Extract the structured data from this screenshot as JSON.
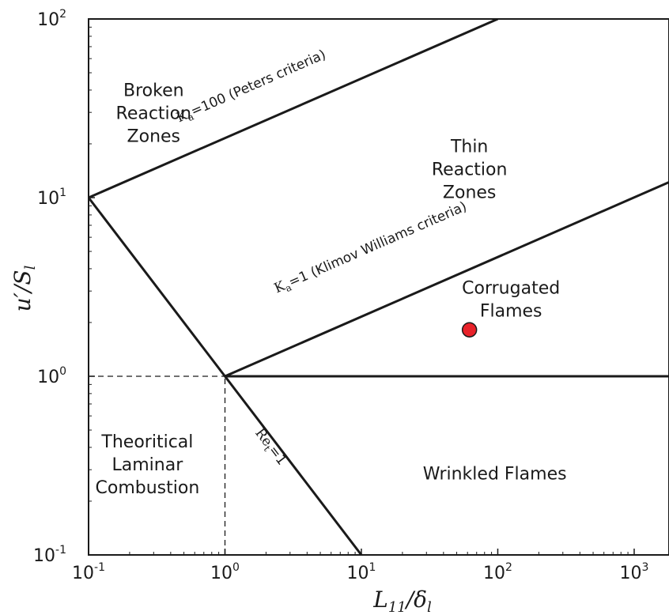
{
  "chart_data": {
    "type": "line",
    "title": "",
    "xlabel": {
      "base": "L",
      "sub": "11",
      "mid": "/δ",
      "sub2": "l"
    },
    "ylabel": {
      "base": "u′/S",
      "sub": "l"
    },
    "xscale": "log",
    "yscale": "log",
    "xlim": [
      0.1,
      1800
    ],
    "ylim": [
      0.1,
      100
    ],
    "grid": false,
    "x_ticks": [
      {
        "value": 0.1,
        "base": "10",
        "exp": "-1"
      },
      {
        "value": 1,
        "base": "10",
        "exp": "0"
      },
      {
        "value": 10,
        "base": "10",
        "exp": "1"
      },
      {
        "value": 100,
        "base": "10",
        "exp": "2"
      },
      {
        "value": 1000,
        "base": "10",
        "exp": "3"
      }
    ],
    "y_ticks": [
      {
        "value": 0.1,
        "base": "10",
        "exp": "-1"
      },
      {
        "value": 1,
        "base": "10",
        "exp": "0"
      },
      {
        "value": 10,
        "base": "10",
        "exp": "1"
      },
      {
        "value": 100,
        "base": "10",
        "exp": "2"
      }
    ],
    "lines": [
      {
        "id": "ka100",
        "x": [
          0.1,
          100
        ],
        "y": [
          10,
          100
        ],
        "style": "solid",
        "label": "K_a=100 (Peters criteria)",
        "label_main": "K",
        "label_sub": "a",
        "label_rest": "=100 (Peters criteria)",
        "label_at": [
          1.6,
          40
        ]
      },
      {
        "id": "ka1",
        "x": [
          1,
          1800
        ],
        "y": [
          1,
          12.2
        ],
        "style": "solid",
        "label": "K_a=1 (Klimov Williams criteria)",
        "label_main": "K",
        "label_sub": "a",
        "label_rest": "=1 (Klimov Williams criteria)",
        "label_at": [
          12,
          5.0
        ]
      },
      {
        "id": "re1",
        "x": [
          0.1,
          10
        ],
        "y": [
          10,
          0.1
        ],
        "style": "solid",
        "label": "Re_t=1",
        "label_main": "Re",
        "label_sub": "t",
        "label_rest": "=1",
        "label_at": [
          2.05,
          0.39
        ]
      },
      {
        "id": "hline",
        "x": [
          1,
          1800
        ],
        "y": [
          1,
          1
        ],
        "style": "solid",
        "label": ""
      },
      {
        "id": "dash-h",
        "x": [
          0.1,
          1
        ],
        "y": [
          1,
          1
        ],
        "style": "dashed",
        "label": ""
      },
      {
        "id": "dash-v",
        "x": [
          1,
          1
        ],
        "y": [
          0.1,
          1
        ],
        "style": "dashed",
        "label": ""
      }
    ],
    "points": [
      {
        "x": 62,
        "y": 1.82,
        "color": "#e8222a"
      }
    ],
    "regions": [
      {
        "id": "broken",
        "lines": [
          "Broken",
          "Reaction",
          "Zones"
        ],
        "at": [
          0.3,
          37
        ]
      },
      {
        "id": "thin",
        "lines": [
          "Thin",
          "Reaction",
          "Zones"
        ],
        "at": [
          62,
          18
        ]
      },
      {
        "id": "corrugated",
        "lines": [
          "Corrugated",
          "Flames"
        ],
        "at": [
          125,
          2.9
        ]
      },
      {
        "id": "laminar",
        "lines": [
          "Theoritical",
          "Laminar",
          "Combustion"
        ],
        "at": [
          0.27,
          0.4
        ]
      },
      {
        "id": "wrinkled",
        "lines": [
          "Wrinkled Flames"
        ],
        "at": [
          95,
          0.265
        ]
      }
    ]
  }
}
